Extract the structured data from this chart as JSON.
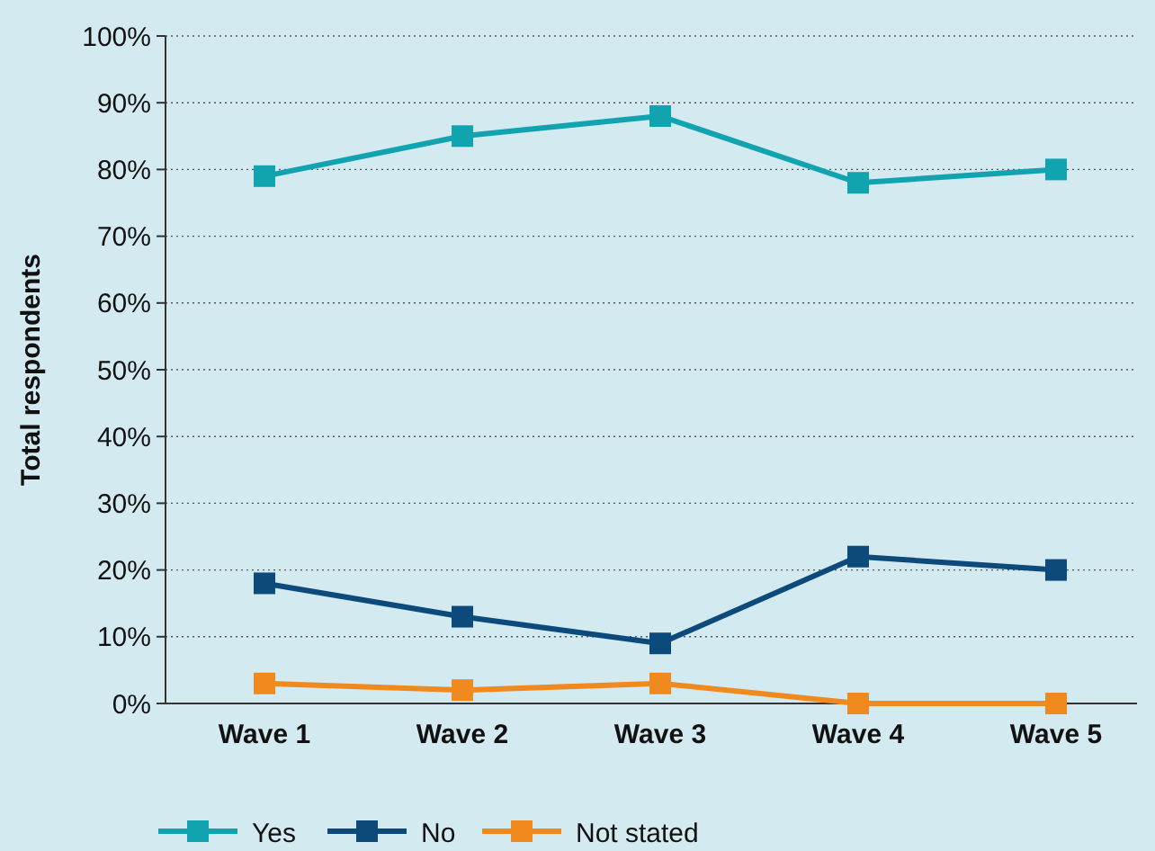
{
  "chart_data": {
    "type": "line",
    "ylabel": "Total respondents",
    "categories": [
      "Wave 1",
      "Wave 2",
      "Wave 3",
      "Wave 4",
      "Wave 5"
    ],
    "series": [
      {
        "name": "Yes",
        "color": "#12a3b0",
        "values": [
          79,
          85,
          88,
          78,
          80
        ]
      },
      {
        "name": "No",
        "color": "#0c4a7c",
        "values": [
          18,
          13,
          9,
          22,
          20
        ]
      },
      {
        "name": "Not stated",
        "color": "#f08a1e",
        "values": [
          3,
          2,
          3,
          0,
          0
        ]
      }
    ],
    "ylim": [
      0,
      100
    ],
    "yticks": [
      {
        "value": 0,
        "label": "0%"
      },
      {
        "value": 10,
        "label": "10%"
      },
      {
        "value": 20,
        "label": "20%"
      },
      {
        "value": 30,
        "label": "30%"
      },
      {
        "value": 40,
        "label": "40%"
      },
      {
        "value": 50,
        "label": "50%"
      },
      {
        "value": 60,
        "label": "60%"
      },
      {
        "value": 70,
        "label": "70%"
      },
      {
        "value": 80,
        "label": "80%"
      },
      {
        "value": 90,
        "label": "90%"
      },
      {
        "value": 100,
        "label": "100%"
      }
    ],
    "grid": "y",
    "legend": "bottom",
    "marker": "square",
    "line_style": "solid"
  }
}
